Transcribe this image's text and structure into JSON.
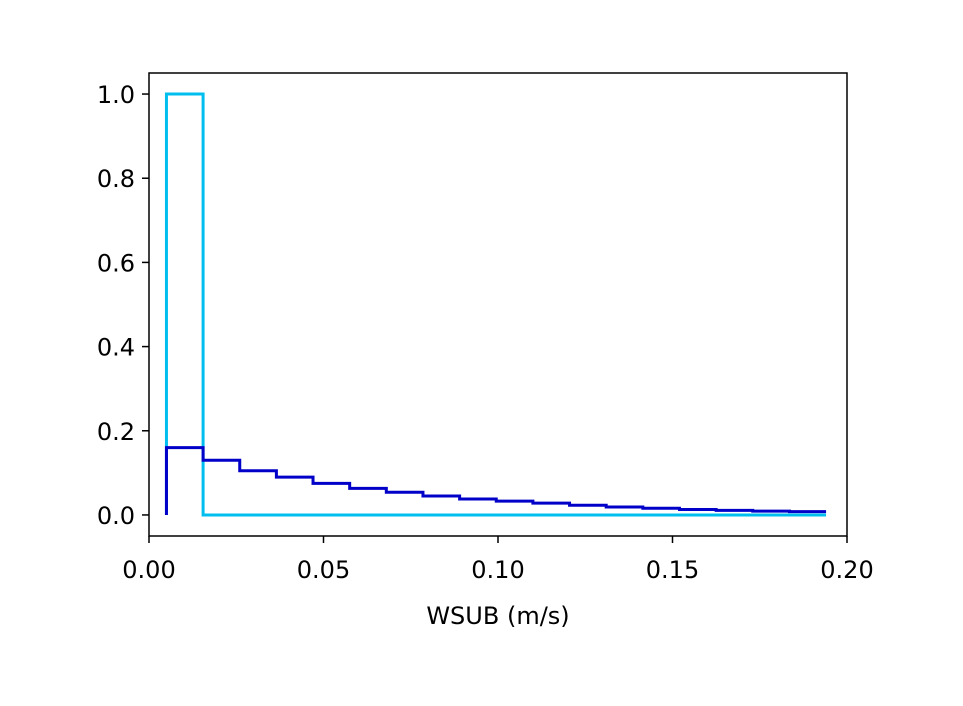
{
  "chart_data": {
    "type": "line",
    "title": "",
    "xlabel": "WSUB (m/s)",
    "ylabel": "",
    "xlim": [
      0.0,
      0.2
    ],
    "ylim": [
      -0.05,
      1.05
    ],
    "xticks": [
      "0.00",
      "0.05",
      "0.10",
      "0.15",
      "0.20"
    ],
    "yticks": [
      "0.0",
      "0.2",
      "0.4",
      "0.6",
      "0.8",
      "1.0"
    ],
    "grid": false,
    "legend": "none",
    "bin_edges": [
      0.005,
      0.0155,
      0.026,
      0.0365,
      0.047,
      0.0575,
      0.068,
      0.0785,
      0.089,
      0.0995,
      0.11,
      0.1205,
      0.131,
      0.1415,
      0.152,
      0.1625,
      0.173,
      0.1835,
      0.194
    ],
    "series": [
      {
        "color": "#00bfef",
        "values": [
          1.0,
          0.0,
          0.0,
          0.0,
          0.0,
          0.0,
          0.0,
          0.0,
          0.0,
          0.0,
          0.0,
          0.0,
          0.0,
          0.0,
          0.0,
          0.0,
          0.0,
          0.0
        ]
      },
      {
        "color": "#0000c8",
        "values": [
          0.16,
          0.13,
          0.105,
          0.09,
          0.075,
          0.063,
          0.054,
          0.045,
          0.038,
          0.033,
          0.028,
          0.023,
          0.019,
          0.016,
          0.013,
          0.011,
          0.009,
          0.008
        ]
      }
    ]
  }
}
